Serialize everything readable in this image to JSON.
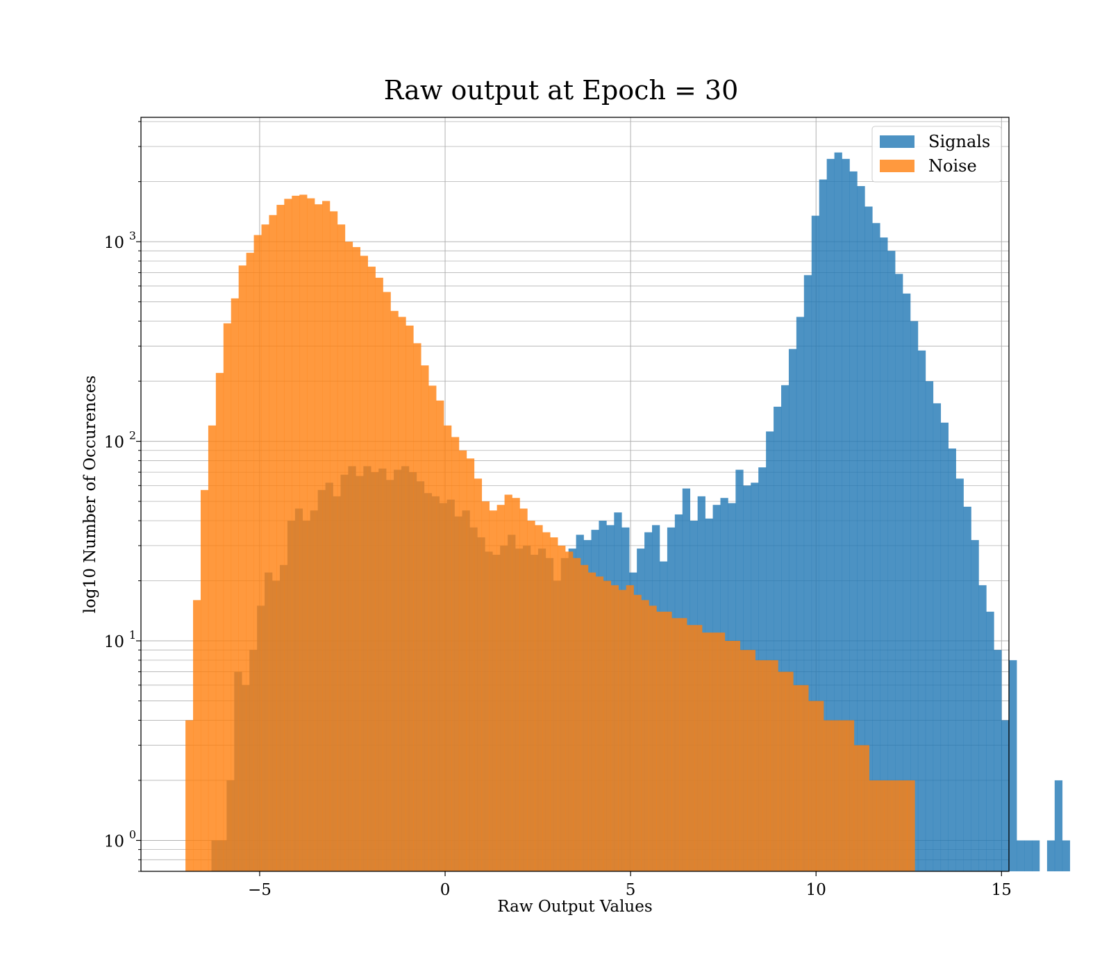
{
  "chart_data": {
    "type": "bar",
    "title": "Raw output at Epoch = 30",
    "xlabel": "Raw Output Values",
    "ylabel": "log10 Number of Occurences",
    "xlim": [
      -8.2,
      15.2
    ],
    "ylim": [
      0.7,
      4200
    ],
    "yscale": "log",
    "grid": true,
    "legend_position": "top-right",
    "x_ticks": [
      {
        "value": -5,
        "label": "−5"
      },
      {
        "value": 0,
        "label": "0"
      },
      {
        "value": 5,
        "label": "5"
      },
      {
        "value": 10,
        "label": "10"
      },
      {
        "value": 15,
        "label": "15"
      }
    ],
    "y_ticks": [
      {
        "value": 1,
        "base": "10",
        "exp": "0"
      },
      {
        "value": 10,
        "base": "10",
        "exp": "1"
      },
      {
        "value": 100,
        "base": "10",
        "exp": "2"
      },
      {
        "value": 1000,
        "base": "10",
        "exp": "3"
      }
    ],
    "series": [
      {
        "name": "Signals",
        "color": "#1f77b4",
        "opacity": 0.8,
        "bin_start": -6.3,
        "bin_width": 0.2048,
        "values": [
          1,
          1,
          2,
          7,
          6,
          9,
          15,
          22,
          20,
          24,
          40,
          46,
          40,
          45,
          57,
          62,
          53,
          68,
          75,
          67,
          75,
          70,
          73,
          64,
          72,
          75,
          70,
          63,
          55,
          53,
          49,
          51,
          42,
          45,
          37,
          33,
          28,
          27,
          30,
          34,
          29,
          30,
          27,
          29,
          26,
          20,
          26,
          29,
          34,
          32,
          36,
          40,
          38,
          44,
          37,
          22,
          29,
          35,
          38,
          25,
          37,
          43,
          58,
          40,
          53,
          41,
          48,
          52,
          49,
          72,
          60,
          62,
          74,
          112,
          149,
          191,
          290,
          420,
          680,
          1350,
          2050,
          2600,
          2800,
          2600,
          2250,
          1900,
          1500,
          1240,
          1050,
          900,
          690,
          550,
          400,
          285,
          200,
          155,
          124,
          92,
          65,
          47,
          32,
          19,
          14,
          9,
          4,
          8,
          1,
          1,
          1,
          0,
          1,
          2,
          1
        ],
        "_note": ""
      },
      {
        "name": "Noise",
        "color": "#ff7f0e",
        "opacity": 0.8,
        "bin_start": -7.0,
        "bin_width": 0.2048,
        "values": [
          4,
          16,
          57,
          120,
          220,
          390,
          520,
          760,
          880,
          1080,
          1220,
          1360,
          1530,
          1640,
          1700,
          1720,
          1650,
          1540,
          1600,
          1420,
          1220,
          1000,
          940,
          850,
          750,
          660,
          560,
          450,
          420,
          380,
          310,
          240,
          190,
          160,
          120,
          105,
          90,
          82,
          65,
          50,
          45,
          48,
          54,
          52,
          46,
          40,
          38,
          35,
          33,
          30,
          28,
          26,
          24,
          22,
          21,
          20,
          19,
          18,
          19,
          17,
          16,
          15,
          14,
          14,
          13,
          13,
          12,
          12,
          11,
          11,
          11,
          10,
          10,
          9,
          9,
          8,
          8,
          8,
          7,
          7,
          6,
          6,
          5,
          5,
          4,
          4,
          4,
          4,
          3,
          3,
          2,
          2,
          2,
          2,
          2,
          2
        ],
        "_note": ""
      }
    ]
  }
}
